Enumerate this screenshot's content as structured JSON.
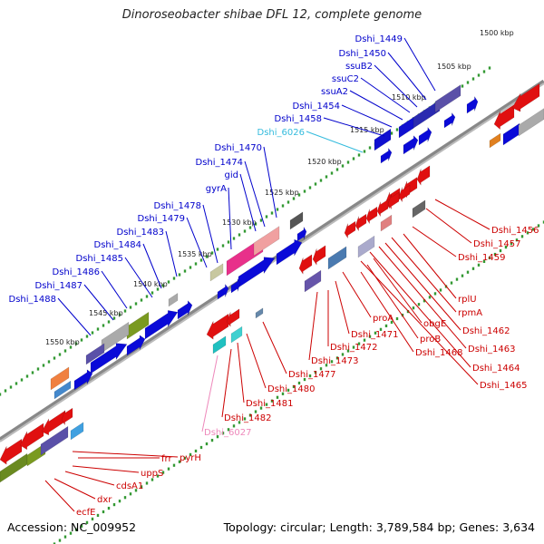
{
  "title": "Dinoroseobacter shibae DFL 12, complete genome",
  "footer": {
    "accession_label": "Accession: NC_009952",
    "summary": "Topology: circular; Length: 3,789,584 bp; Genes: 3,634"
  },
  "colors": {
    "axis": "#777777",
    "tick": "#339933",
    "strand_plus_gene": "#0000dd",
    "strand_minus_gene": "#dd0000",
    "label_plus": "#0000cc",
    "label_minus": "#cc0000",
    "label_other": "#33bbdd",
    "label_pink": "#ee88bb"
  },
  "kbp_ticks": [
    "1500 kbp",
    "1505 kbp",
    "1510 kbp",
    "1515 kbp",
    "1520 kbp",
    "1525 kbp",
    "1530 kbp",
    "1535 kbp",
    "1540 kbp",
    "1545 kbp",
    "1550 kbp"
  ],
  "upper_labels": [
    "Dshi_1449",
    "Dshi_1450",
    "ssuB2",
    "ssuC2",
    "ssuA2",
    "Dshi_1454",
    "Dshi_1458",
    "Dshi_6026",
    "Dshi_1470",
    "Dshi_1474",
    "gid",
    "gyrA",
    "Dshi_1478",
    "Dshi_1479",
    "Dshi_1483",
    "Dshi_1484",
    "Dshi_1485",
    "Dshi_1486",
    "Dshi_1487",
    "Dshi_1488"
  ],
  "lower_labels": [
    "Dshi_1456",
    "Dshi_1457",
    "Dshi_1459",
    "rplU",
    "rpmA",
    "Dshi_1462",
    "Dshi_1463",
    "Dshi_1464",
    "Dshi_1465",
    "obgE",
    "proB",
    "Dshi_1468",
    "proA",
    "Dshi_1471",
    "Dshi_1472",
    "Dshi_1473",
    "Dshi_1477",
    "Dshi_1480",
    "Dshi_1481",
    "Dshi_1482",
    "Dshi_6027",
    "pyrH",
    "frr",
    "uppS",
    "cdsA1",
    "dxr",
    "ecfE"
  ]
}
